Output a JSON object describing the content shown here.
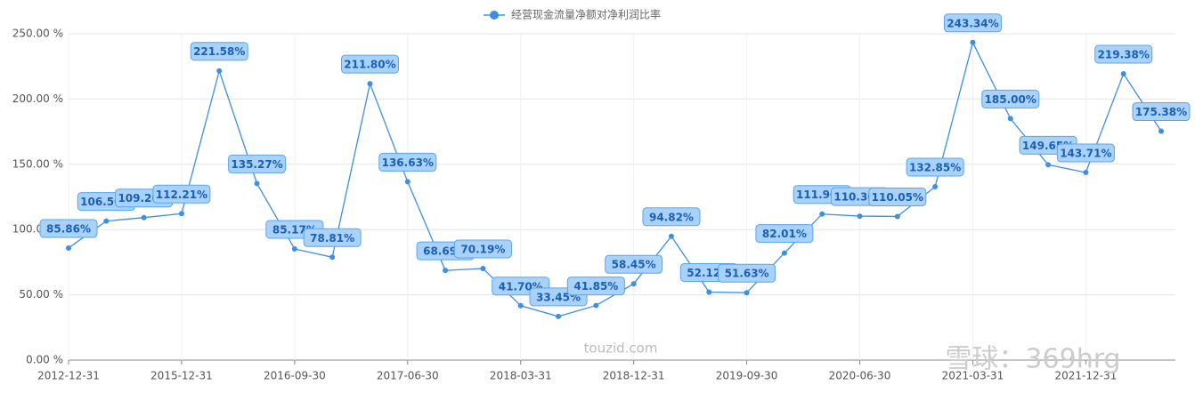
{
  "chart_data": {
    "type": "line",
    "legend": "经营现金流量净额对净利润比率",
    "categories": [
      "2012-12-31",
      null,
      null,
      "2015-12-31",
      null,
      null,
      "2016-09-30",
      null,
      null,
      "2017-06-30",
      null,
      null,
      "2018-03-31",
      null,
      null,
      "2018-12-31",
      null,
      null,
      "2019-09-30",
      null,
      null,
      "2020-06-30",
      null,
      null,
      "2021-03-31",
      null,
      null,
      "2021-12-31",
      null,
      null
    ],
    "series": [
      {
        "name": "经营现金流量净额对净利润比率",
        "color": "#3d8fe0",
        "values": [
          85.86,
          106.5,
          109.2,
          112.21,
          221.58,
          135.27,
          85.17,
          78.81,
          211.8,
          136.63,
          68.69,
          70.19,
          41.7,
          33.45,
          41.85,
          58.45,
          94.82,
          52.12,
          51.63,
          82.01,
          111.9,
          110.3,
          110.05,
          132.85,
          243.34,
          185.0,
          149.65,
          143.71,
          219.38,
          175.38
        ],
        "value_labels": [
          "85.86%",
          "106.50%",
          "109.20%",
          "112.21%",
          "221.58%",
          "135.27%",
          "85.17%",
          "78.81%",
          "211.80%",
          "136.63%",
          "68.69%",
          "70.19%",
          "41.70%",
          "33.45%",
          "41.85%",
          "58.45%",
          "94.82%",
          "52.12%",
          "51.63%",
          "82.01%",
          "111.90%",
          "110.30%",
          "110.05%",
          "132.85%",
          "243.34%",
          "185.00%",
          "149.65%",
          "143.71%",
          "219.38%",
          "175.38%"
        ]
      }
    ],
    "ylim": [
      0,
      250
    ],
    "yticks": [
      {
        "value": 0,
        "label": "0.00 %"
      },
      {
        "value": 50,
        "label": "50.00 %"
      },
      {
        "value": 100,
        "label": "100.00 %"
      },
      {
        "value": 150,
        "label": "150.00 %"
      },
      {
        "value": 200,
        "label": "200.00 %"
      },
      {
        "value": 250,
        "label": "250.00 %"
      }
    ],
    "grid": true,
    "watermarks": [
      "touzid.com",
      "雪球：369hrg"
    ]
  }
}
